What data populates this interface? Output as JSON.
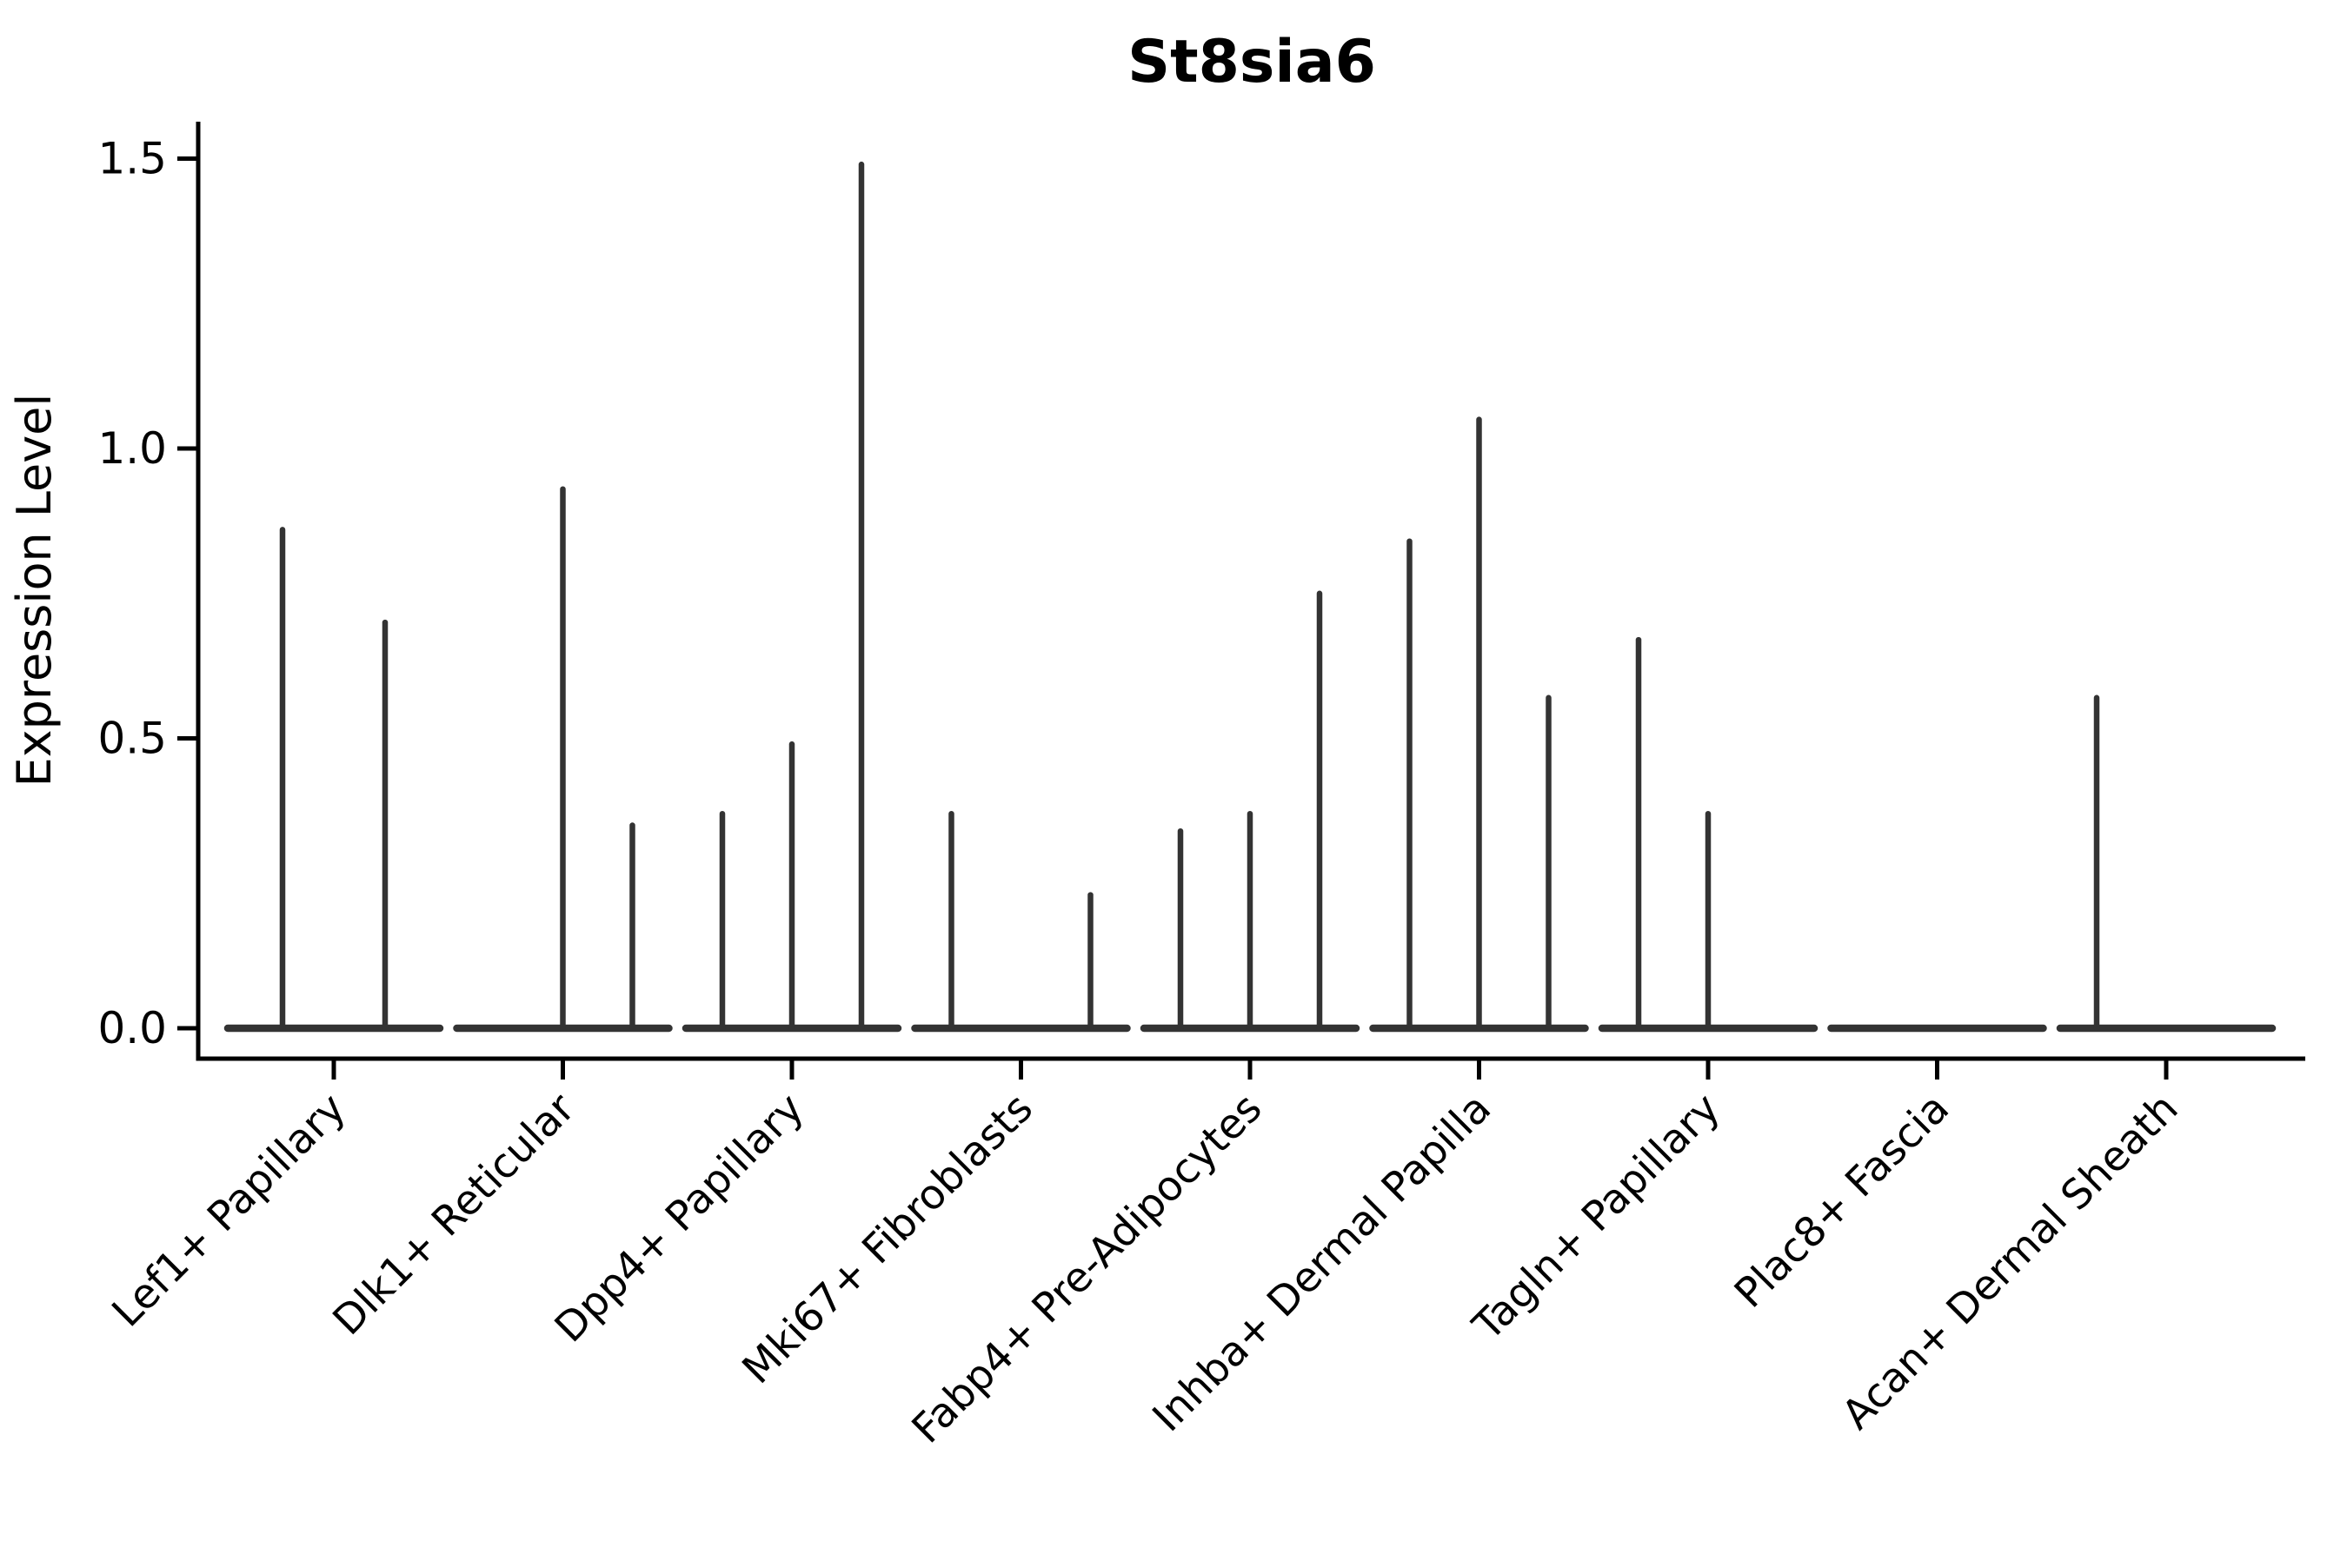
{
  "figure": {
    "background": "#ffffff"
  },
  "chart_data": {
    "type": "violin",
    "title": "St8sia6",
    "xlabel": "",
    "ylabel": "Expression Level",
    "grid": false,
    "legend": false,
    "ylim": [
      -0.05,
      1.56
    ],
    "yticks": [
      {
        "value": 0.0,
        "label": "0.0"
      },
      {
        "value": 0.5,
        "label": "0.5"
      },
      {
        "value": 1.0,
        "label": "1.0"
      },
      {
        "value": 1.5,
        "label": "1.5"
      }
    ],
    "categories": [
      "Lef1+ Papillary",
      "Dlk1+ Reticular",
      "Dpp4+ Papillary",
      "Mki67+ Fibroblasts",
      "Fabp4+ Pre-Adipocytes",
      "Inhba+ Dermal Papilla",
      "Tagln+ Papillary",
      "Plac8+ Fascia",
      "Acan+ Dermal Sheath"
    ],
    "groups": [
      {
        "category": "Lef1+ Papillary",
        "violins": [
          {
            "slot": "left",
            "max": 0.86
          },
          {
            "slot": "right",
            "max": 0.7
          }
        ]
      },
      {
        "category": "Dlk1+ Reticular",
        "violins": [
          {
            "slot": "left",
            "max": 0
          },
          {
            "slot": "center",
            "max": 0.93
          },
          {
            "slot": "right",
            "max": 0.35
          }
        ]
      },
      {
        "category": "Dpp4+ Papillary",
        "violins": [
          {
            "slot": "left",
            "max": 0.37
          },
          {
            "slot": "center",
            "max": 0.49
          },
          {
            "slot": "right",
            "max": 1.49
          }
        ]
      },
      {
        "category": "Mki67+ Fibroblasts",
        "violins": [
          {
            "slot": "left",
            "max": 0.37
          },
          {
            "slot": "center",
            "max": 0
          },
          {
            "slot": "right",
            "max": 0.23
          }
        ]
      },
      {
        "category": "Fabp4+ Pre-Adipocytes",
        "violins": [
          {
            "slot": "left",
            "max": 0.34
          },
          {
            "slot": "center",
            "max": 0.37
          },
          {
            "slot": "right",
            "max": 0.75
          }
        ]
      },
      {
        "category": "Inhba+ Dermal Papilla",
        "violins": [
          {
            "slot": "left",
            "max": 0.84
          },
          {
            "slot": "center",
            "max": 1.05
          },
          {
            "slot": "right",
            "max": 0.57
          }
        ]
      },
      {
        "category": "Tagln+ Papillary",
        "violins": [
          {
            "slot": "left",
            "max": 0.67
          },
          {
            "slot": "center",
            "max": 0.37
          },
          {
            "slot": "right",
            "max": 0
          }
        ]
      },
      {
        "category": "Plac8+ Fascia",
        "violins": [
          {
            "slot": "left",
            "max": 0
          },
          {
            "slot": "center",
            "max": 0
          },
          {
            "slot": "right",
            "max": 0
          }
        ]
      },
      {
        "category": "Acan+ Dermal Sheath",
        "violins": [
          {
            "slot": "left",
            "max": 0.57
          },
          {
            "slot": "center",
            "max": 0
          },
          {
            "slot": "right",
            "max": 0
          }
        ]
      }
    ],
    "colors": {
      "violin_line": "#333333",
      "axis": "#000000",
      "text": "#000000",
      "background": "#ffffff"
    }
  }
}
